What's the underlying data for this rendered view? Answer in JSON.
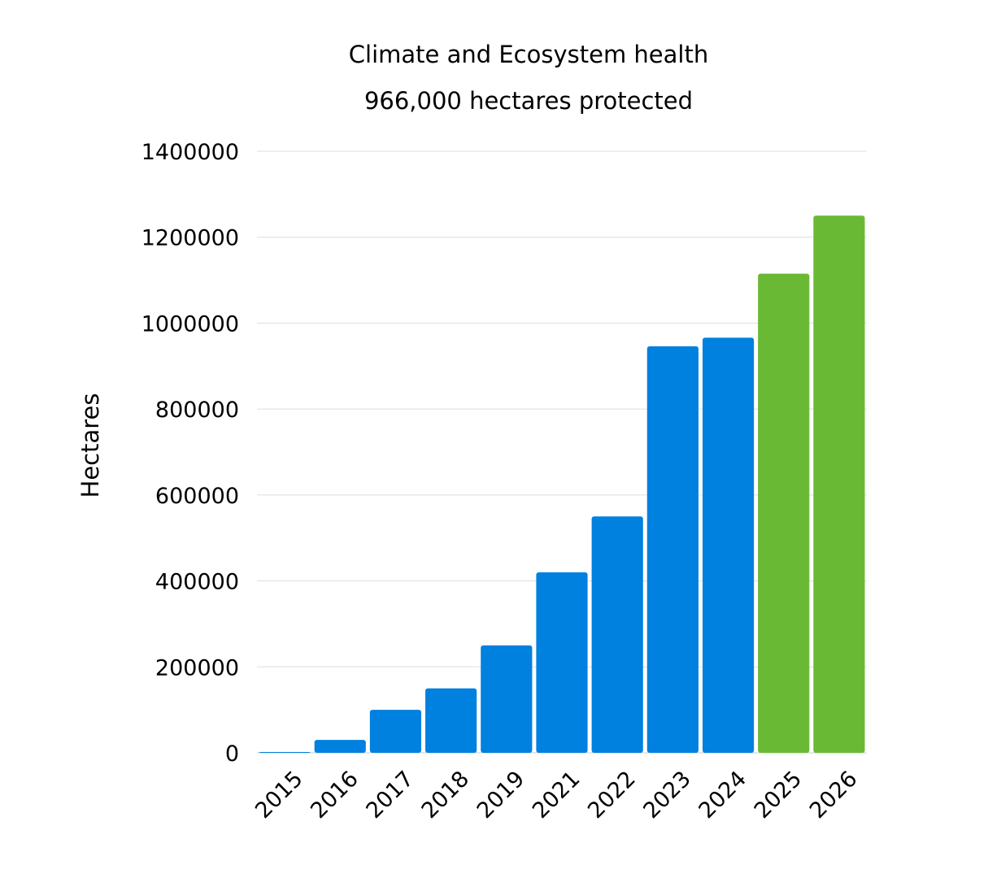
{
  "chart_data": {
    "type": "bar",
    "title": "Climate and Ecosystem health",
    "subtitle": "966,000 hectares protected",
    "xlabel": "",
    "ylabel": "Hectares",
    "categories": [
      "2015",
      "2016",
      "2017",
      "2018",
      "2019",
      "2021",
      "2022",
      "2023",
      "2024",
      "2025",
      "2026"
    ],
    "values": [
      1000,
      30000,
      100000,
      150000,
      250000,
      420000,
      550000,
      946000,
      966000,
      1115000,
      1250000
    ],
    "bar_colors": [
      "#0080DF",
      "#0080DF",
      "#0080DF",
      "#0080DF",
      "#0080DF",
      "#0080DF",
      "#0080DF",
      "#0080DF",
      "#0080DF",
      "#6AB934",
      "#6AB934"
    ],
    "ylim": [
      0,
      1400000
    ],
    "yticks": [
      0,
      200000,
      400000,
      600000,
      800000,
      1000000,
      1200000,
      1400000
    ],
    "ytick_labels": [
      "0",
      "200000",
      "400000",
      "600000",
      "800000",
      "1000000",
      "1200000",
      "1400000"
    ],
    "grid": true,
    "legend": "none"
  },
  "colors": {
    "actual": "#0080DF",
    "projected": "#6AB934",
    "grid": "#dddddd",
    "baseline": "#cccccc"
  }
}
